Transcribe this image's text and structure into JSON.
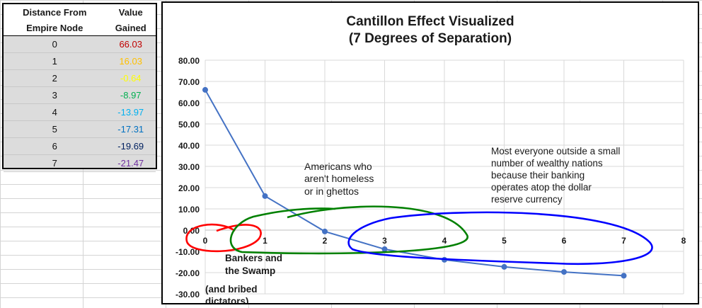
{
  "table": {
    "header": {
      "col1_line1": "Distance From",
      "col1_line2": "Empire Node",
      "col2_line1": "Value",
      "col2_line2": "Gained"
    },
    "rows": [
      {
        "distance": "0",
        "value": "66.03",
        "color": "#c00000"
      },
      {
        "distance": "1",
        "value": "16.03",
        "color": "#ffc000"
      },
      {
        "distance": "2",
        "value": "-0.64",
        "color": "#ffff00"
      },
      {
        "distance": "3",
        "value": "-8.97",
        "color": "#00b050"
      },
      {
        "distance": "4",
        "value": "-13.97",
        "color": "#00b0f0"
      },
      {
        "distance": "5",
        "value": "-17.31",
        "color": "#0070c0"
      },
      {
        "distance": "6",
        "value": "-19.69",
        "color": "#002060"
      },
      {
        "distance": "7",
        "value": "-21.47",
        "color": "#7030a0"
      }
    ]
  },
  "chart_data": {
    "type": "scatter",
    "title": "Cantillon Effect Visualized",
    "subtitle": "(7 Degrees of Separation)",
    "x": [
      0,
      1,
      2,
      3,
      4,
      5,
      6,
      7
    ],
    "y": [
      66.03,
      16.03,
      -0.64,
      -8.97,
      -13.97,
      -17.31,
      -19.69,
      -21.47
    ],
    "xlim": [
      0,
      8
    ],
    "ylim": [
      -30,
      80
    ],
    "x_ticks": [
      "0",
      "1",
      "2",
      "3",
      "4",
      "5",
      "6",
      "7",
      "8"
    ],
    "y_ticks": [
      "80.00",
      "70.00",
      "60.00",
      "50.00",
      "40.00",
      "30.00",
      "20.00",
      "10.00",
      "0.00",
      "-10.00",
      "-20.00",
      "-30.00"
    ],
    "line_color": "#4472c4",
    "grid": true,
    "annotations": {
      "bankers_line1": "Bankers and",
      "bankers_line2": "the Swamp",
      "bribed_line1": "(and bribed",
      "bribed_line2": "dictators)",
      "americans_line1": "Americans who",
      "americans_line2": "aren't homeless",
      "americans_line3": "or in ghettos",
      "most_line1": "Most everyone outside a small",
      "most_line2": "number of wealthy nations",
      "most_line3": "because their banking",
      "most_line4": "operates atop the dollar",
      "most_line5": "reserve currency"
    },
    "highlight_colors": {
      "red": "#ff0000",
      "green": "#008000",
      "blue": "#0000ff"
    }
  }
}
